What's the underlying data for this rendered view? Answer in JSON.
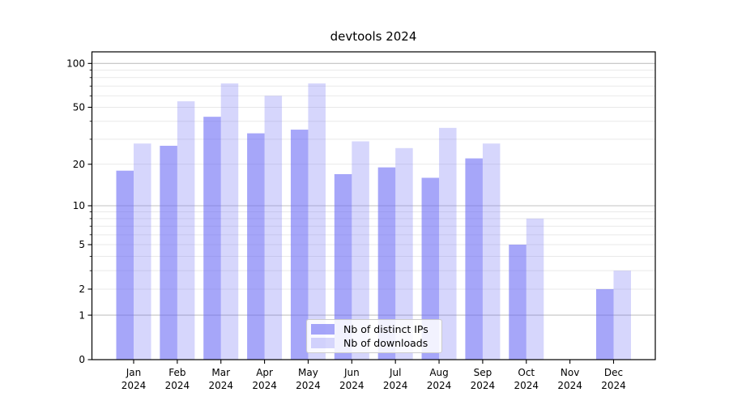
{
  "figure": {
    "title": "devtools 2024"
  },
  "chart_data": {
    "type": "bar",
    "title": "devtools 2024",
    "categories": [
      "Jan",
      "Feb",
      "Mar",
      "Apr",
      "May",
      "Jun",
      "Jul",
      "Aug",
      "Sep",
      "Oct",
      "Nov",
      "Dec"
    ],
    "category_year": "2024",
    "series": [
      {
        "name": "Nb of distinct IPs",
        "color": "rgba(102,102,245,0.58)",
        "values": [
          18,
          27,
          43,
          33,
          35,
          17,
          19,
          16,
          22,
          5,
          0,
          2
        ]
      },
      {
        "name": "Nb of downloads",
        "color": "rgba(102,102,245,0.27)",
        "values": [
          28,
          55,
          73,
          60,
          73,
          29,
          26,
          36,
          28,
          8,
          0,
          3
        ]
      }
    ],
    "xlabel": "",
    "ylabel": "",
    "yscale": "log1p",
    "yticks": [
      0,
      1,
      2,
      5,
      10,
      20,
      50,
      100
    ],
    "ylim": [
      0,
      120
    ],
    "grid": {
      "major_values": [
        1,
        10,
        100
      ],
      "minor_values": [
        2,
        3,
        4,
        5,
        6,
        7,
        8,
        9,
        20,
        30,
        40,
        50,
        60,
        70,
        80,
        90
      ],
      "major_color": "#c3c3c3",
      "minor_color": "#e9e9e9"
    },
    "legend": {
      "position": "lower center",
      "entries": [
        "Nb of distinct IPs",
        "Nb of downloads"
      ]
    },
    "text_color": "#000000"
  }
}
